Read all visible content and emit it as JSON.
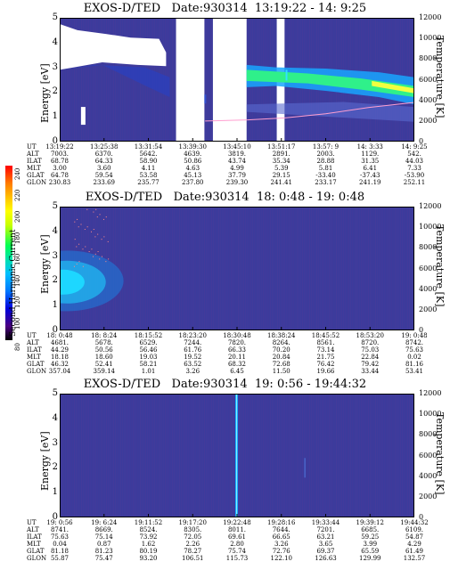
{
  "colorbar": {
    "ticks": [
      "240",
      "220",
      "200",
      "180",
      "160",
      "140",
      "120",
      "100",
      "80"
    ],
    "label": "Second Harmonic Current"
  },
  "panels": [
    {
      "title": "EXOS-D/TED   Date:930314  13:19:22 - 14: 9:25",
      "ylabel": "Energy [eV]",
      "rlabel": "Temperature [K]",
      "yticks": [
        "5",
        "4",
        "3",
        "2",
        "1",
        "0"
      ],
      "rticks": [
        "12000",
        "10000",
        "8000",
        "6000",
        "4000",
        "2000",
        "0"
      ],
      "orbit": {
        "headers": [
          "UT",
          "ALT",
          "ILAT",
          "MLT",
          "GLAT",
          "GLON"
        ],
        "columns": [
          [
            "13:19:22",
            "7003.",
            "68.78",
            "3.00",
            "64.78",
            "230.83"
          ],
          [
            "13:25:38",
            "6370.",
            "64.33",
            "3.60",
            "59.54",
            "233.69"
          ],
          [
            "13:31:54",
            "5642.",
            "58.90",
            "4.11",
            "53.58",
            "235.77"
          ],
          [
            "13:39:30",
            "4639.",
            "50.86",
            "4.63",
            "45.13",
            "237.80"
          ],
          [
            "13:45:10",
            "3819.",
            "43.74",
            "4.99",
            "37.79",
            "239.30"
          ],
          [
            "13:51:17",
            "2891.",
            "35.34",
            "5.39",
            "29.15",
            "241.41"
          ],
          [
            "13:57: 9",
            "2003.",
            "28.88",
            "5.81",
            "-33.40",
            "233.17"
          ],
          [
            "14: 3:33",
            "1129.",
            "31.35",
            "6.41",
            "-37.43",
            "241.19"
          ],
          [
            "14: 9:25",
            "542.",
            "44.03",
            "7.33",
            "-53.90",
            "252.11"
          ]
        ]
      }
    },
    {
      "title": "EXOS-D/TED   Date:930314  18: 0:48 - 19: 0:48",
      "ylabel": "Energy [eV]",
      "rlabel": "Temperature [K]",
      "yticks": [
        "5",
        "4",
        "3",
        "2",
        "1",
        "0"
      ],
      "rticks": [
        "12000",
        "10000",
        "8000",
        "6000",
        "4000",
        "2000",
        "0"
      ],
      "orbit": {
        "headers": [
          "UT",
          "ALT",
          "ILAT",
          "MLT",
          "GLAT",
          "GLON"
        ],
        "columns": [
          [
            "18: 0:48",
            "4681.",
            "44.29",
            "18.18",
            "46.32",
            "357.04"
          ],
          [
            "18: 8:24",
            "5678.",
            "50.56",
            "18.60",
            "52.41",
            "359.14"
          ],
          [
            "18:15:52",
            "6529.",
            "56.46",
            "19.03",
            "58.21",
            "1.01"
          ],
          [
            "18:23:20",
            "7244.",
            "61.76",
            "19.52",
            "63.52",
            "3.26"
          ],
          [
            "18:30:48",
            "7820.",
            "66.33",
            "20.11",
            "68.32",
            "6.45"
          ],
          [
            "18:38:24",
            "8264.",
            "70.20",
            "20.84",
            "72.68",
            "11.50"
          ],
          [
            "18:45:52",
            "8561.",
            "73.14",
            "21.75",
            "76.42",
            "19.66"
          ],
          [
            "18:53:20",
            "8720.",
            "75.03",
            "22.84",
            "79.42",
            "33.44"
          ],
          [
            "19: 0:48",
            "8742.",
            "75.63",
            "0.02",
            "81.16",
            "53.41"
          ]
        ]
      }
    },
    {
      "title": "EXOS-D/TED   Date:930314  19: 0:56 - 19:44:32",
      "ylabel": "Energy [eV]",
      "rlabel": "Temperature [K]",
      "yticks": [
        "5",
        "4",
        "3",
        "2",
        "1",
        "0"
      ],
      "rticks": [
        "12000",
        "10000",
        "8000",
        "6000",
        "4000",
        "2000",
        "0"
      ],
      "orbit": {
        "headers": [
          "UT",
          "ALT",
          "ILAT",
          "MLT",
          "GLAT",
          "GLON"
        ],
        "columns": [
          [
            "19: 0:56",
            "8741.",
            "75.63",
            "0.04",
            "81.18",
            "55.87"
          ],
          [
            "19: 6:24",
            "8669.",
            "75.14",
            "0.87",
            "81.23",
            "75.47"
          ],
          [
            "19:11:52",
            "8524.",
            "73.92",
            "1.62",
            "80.19",
            "93.20"
          ],
          [
            "19:17:20",
            "8305.",
            "72.05",
            "2.26",
            "78.27",
            "106.51"
          ],
          [
            "19:22:48",
            "8011.",
            "69.61",
            "2.80",
            "75.74",
            "115.73"
          ],
          [
            "19:28:16",
            "7644.",
            "66.65",
            "3.26",
            "72.76",
            "122.10"
          ],
          [
            "19:33:44",
            "7201.",
            "63.21",
            "3.65",
            "69.37",
            "126.63"
          ],
          [
            "19:39:12",
            "6685.",
            "59.25",
            "3.99",
            "65.59",
            "129.99"
          ],
          [
            "19:44:32",
            "6109.",
            "54.87",
            "4.29",
            "61.49",
            "132.57"
          ]
        ]
      }
    }
  ],
  "chart_data": [
    {
      "type": "heatmap",
      "title": "EXOS-D/TED   Date:930314  13:19:22 - 14: 9:25",
      "x_ticks_UT": [
        "13:19:22",
        "13:25:38",
        "13:31:54",
        "13:39:30",
        "13:45:10",
        "13:51:17",
        "13:57: 9",
        "14: 3:33",
        "14: 9:25"
      ],
      "ylabel": "Energy [eV]",
      "ylim": [
        0,
        5
      ],
      "y2label": "Temperature [K]",
      "y2lim": [
        0,
        12000
      ],
      "colorbar_label": "Second Harmonic Current",
      "colorbar_range": [
        80,
        240
      ],
      "gaps_UT": [
        [
          "13:35:30",
          "13:38:40"
        ],
        [
          "13:40:00",
          "13:43:50"
        ],
        [
          "13:49:30",
          "13:50:40"
        ]
      ],
      "features": [
        {
          "desc": "white saturated region",
          "UT_range": [
            "13:19:22",
            "13:36:00"
          ],
          "energy_range_eV": [
            3.0,
            4.7
          ]
        },
        {
          "desc": "green-yellow band",
          "UT_range": [
            "13:45:10",
            "14: 9:25"
          ],
          "energy_center_eV": [
            2.7,
            2.5,
            2.3,
            1.8
          ]
        },
        {
          "desc": "temperature curve",
          "UT": [
            "13:39:30",
            "13:45:10",
            "13:51:17",
            "13:57: 9",
            "14: 3:33",
            "14: 9:25"
          ],
          "temperature_K": [
            2000,
            2100,
            2300,
            2700,
            3300,
            3800
          ]
        }
      ]
    },
    {
      "type": "heatmap",
      "title": "EXOS-D/TED   Date:930314  18: 0:48 - 19: 0:48",
      "x_ticks_UT": [
        "18: 0:48",
        "18: 8:24",
        "18:15:52",
        "18:23:20",
        "18:30:48",
        "18:38:24",
        "18:45:52",
        "18:53:20",
        "19: 0:48"
      ],
      "ylabel": "Energy [eV]",
      "ylim": [
        0,
        5
      ],
      "y2label": "Temperature [K]",
      "y2lim": [
        0,
        12000
      ],
      "features": [
        {
          "desc": "blue/cyan enhancement",
          "UT_range": [
            "18: 0:48",
            "18:12:00"
          ],
          "energy_range_eV": [
            0.8,
            3.2
          ],
          "peak_energy_eV": 2.0
        }
      ]
    },
    {
      "type": "heatmap",
      "title": "EXOS-D/TED   Date:930314  19: 0:56 - 19:44:32",
      "x_ticks_UT": [
        "19: 0:56",
        "19: 6:24",
        "19:11:52",
        "19:17:20",
        "19:22:48",
        "19:28:16",
        "19:33:44",
        "19:39:12",
        "19:44:32"
      ],
      "ylabel": "Energy [eV]",
      "ylim": [
        0,
        5
      ],
      "y2label": "Temperature [K]",
      "y2lim": [
        0,
        12000
      ],
      "features": [
        {
          "desc": "vertical bright line",
          "UT": "19:22:48",
          "energy_range_eV": [
            0,
            5
          ]
        }
      ]
    }
  ]
}
